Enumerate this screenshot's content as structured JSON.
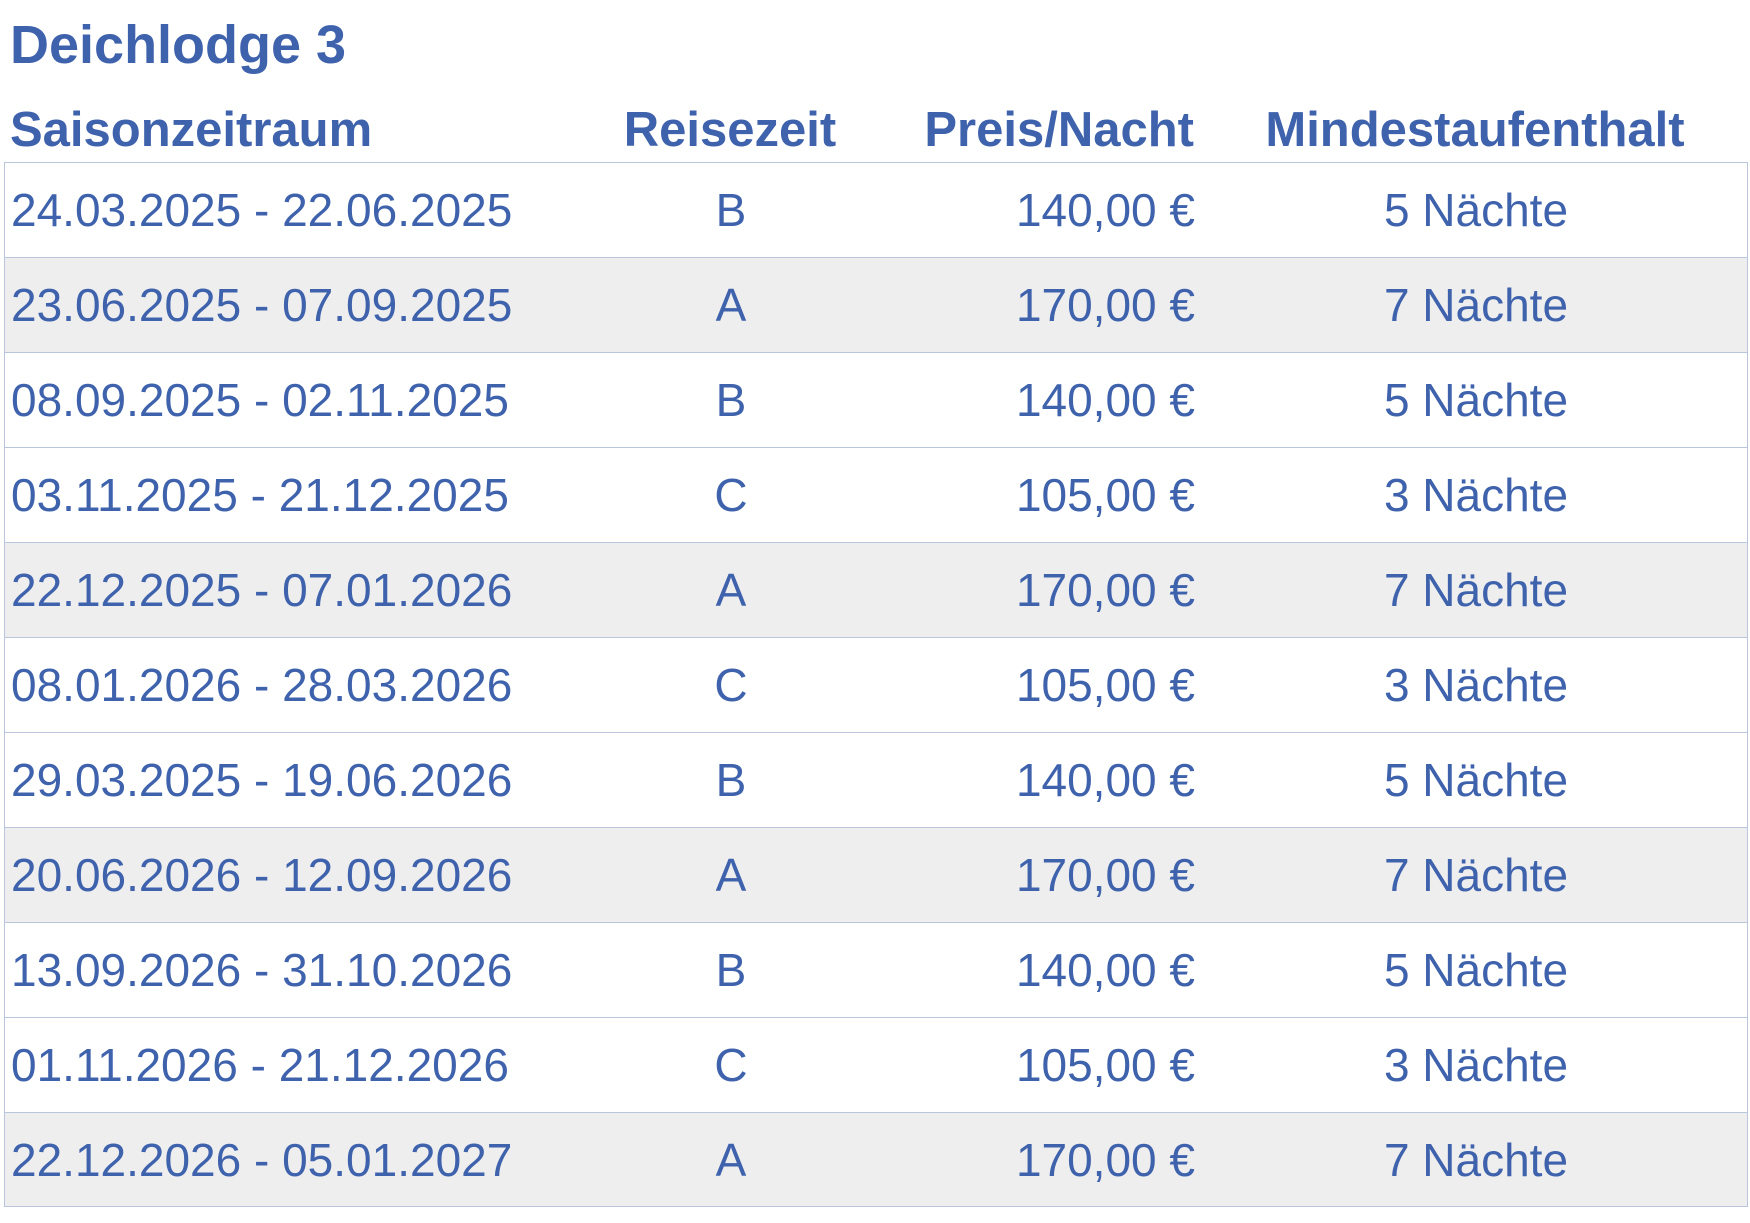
{
  "title": "Deichlodge 3",
  "headers": {
    "period": "Saisonzeitraum",
    "season": "Reisezeit",
    "price": "Preis/Nacht",
    "min_stay": "Mindestaufenthalt"
  },
  "rows": [
    {
      "period": "24.03.2025 - 22.06.2025",
      "season": "B",
      "price": "140,00 €",
      "min_stay": "5 Nächte"
    },
    {
      "period": "23.06.2025 - 07.09.2025",
      "season": "A",
      "price": "170,00 €",
      "min_stay": "7 Nächte"
    },
    {
      "period": "08.09.2025 - 02.11.2025",
      "season": "B",
      "price": "140,00 €",
      "min_stay": "5 Nächte"
    },
    {
      "period": "03.11.2025 - 21.12.2025",
      "season": "C",
      "price": "105,00 €",
      "min_stay": "3 Nächte"
    },
    {
      "period": "22.12.2025 - 07.01.2026",
      "season": "A",
      "price": "170,00 €",
      "min_stay": "7 Nächte"
    },
    {
      "period": "08.01.2026 - 28.03.2026",
      "season": "C",
      "price": "105,00 €",
      "min_stay": "3 Nächte"
    },
    {
      "period": "29.03.2025 - 19.06.2026",
      "season": "B",
      "price": "140,00 €",
      "min_stay": "5 Nächte"
    },
    {
      "period": "20.06.2026 - 12.09.2026",
      "season": "A",
      "price": "170,00 €",
      "min_stay": "7 Nächte"
    },
    {
      "period": "13.09.2026 - 31.10.2026",
      "season": "B",
      "price": "140,00 €",
      "min_stay": "5 Nächte"
    },
    {
      "period": "01.11.2026 - 21.12.2026",
      "season": "C",
      "price": "105,00 €",
      "min_stay": "3 Nächte"
    },
    {
      "period": "22.12.2026 - 05.01.2027",
      "season": "A",
      "price": "170,00 €",
      "min_stay": "7 Nächte"
    }
  ],
  "colors": {
    "text": "#3f62ad",
    "alt_row": "#eeeeee",
    "border": "#b9c6dc"
  }
}
